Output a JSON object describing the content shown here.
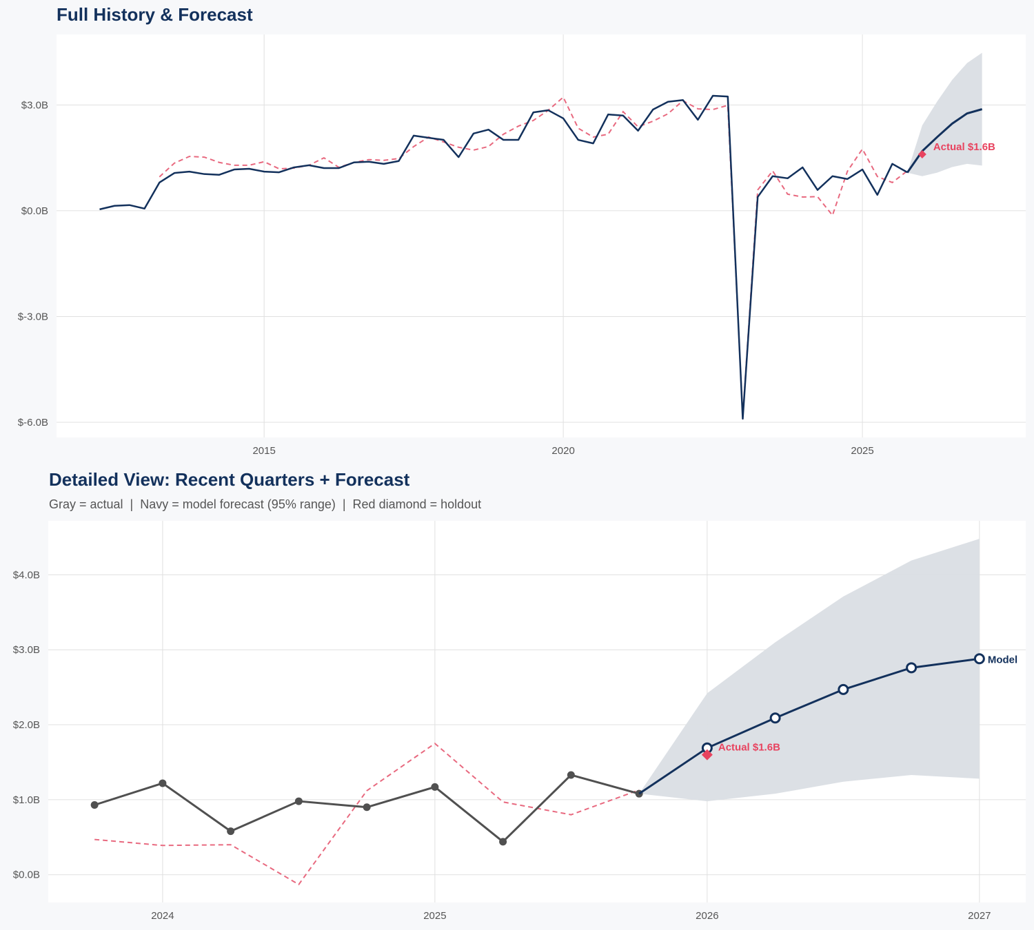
{
  "colors": {
    "navy": "#13315c",
    "gray": "#505050",
    "fitted": "#e8697f",
    "holdout": "#e8435f",
    "band": "#dadee4",
    "grid": "#e0e0e0"
  },
  "chart_data": [
    {
      "type": "line",
      "title": "Full History & Forecast",
      "xlim": [
        2011.53,
        2027.73
      ],
      "ylim": [
        -6.43,
        5.0
      ],
      "grid": true,
      "xticks": [
        2015,
        2020,
        2025
      ],
      "xtick_labels": [
        "2015",
        "2020",
        "2025"
      ],
      "yticks": [
        -6,
        -3,
        0,
        3
      ],
      "ytick_labels": [
        "$-6.0B",
        "$-3.0B",
        "$0.0B",
        "$3.0B"
      ],
      "actual": {
        "x_start": 2012.25,
        "x_step": 0.25,
        "values": [
          0.04,
          0.14,
          0.16,
          0.06,
          0.8,
          1.07,
          1.11,
          1.04,
          1.02,
          1.17,
          1.19,
          1.11,
          1.09,
          1.23,
          1.29,
          1.21,
          1.21,
          1.37,
          1.39,
          1.33,
          1.41,
          2.13,
          2.07,
          2.01,
          1.52,
          2.19,
          2.3,
          2.01,
          2.01,
          2.79,
          2.85,
          2.62,
          2.01,
          1.91,
          2.73,
          2.7,
          2.27,
          2.87,
          3.09,
          3.14,
          2.58,
          3.26,
          3.24,
          -5.9,
          0.39,
          0.98,
          0.92,
          1.23,
          0.59,
          0.98,
          0.9,
          1.17,
          0.45,
          1.33,
          1.09
        ]
      },
      "fitted": {
        "x_start": 2013.25,
        "x_step": 0.25,
        "values": [
          0.96,
          1.35,
          1.54,
          1.52,
          1.37,
          1.29,
          1.29,
          1.39,
          1.19,
          1.21,
          1.29,
          1.5,
          1.23,
          1.37,
          1.45,
          1.43,
          1.48,
          1.82,
          2.09,
          1.95,
          1.8,
          1.72,
          1.82,
          2.17,
          2.4,
          2.56,
          2.85,
          3.22,
          2.34,
          2.09,
          2.17,
          2.81,
          2.38,
          2.54,
          2.75,
          3.12,
          2.89,
          2.87,
          2.99,
          -5.84,
          0.59,
          1.13,
          0.47,
          0.39,
          0.4,
          -0.13,
          1.12,
          1.75,
          0.97,
          0.8,
          1.13
        ]
      },
      "forecast": {
        "x": [
          2025.75,
          2026.0,
          2026.25,
          2026.5,
          2026.75,
          2027.0
        ],
        "values": [
          1.08,
          1.69,
          2.09,
          2.47,
          2.76,
          2.88
        ],
        "lower": [
          1.08,
          0.98,
          1.08,
          1.24,
          1.33,
          1.28
        ],
        "upper": [
          1.08,
          2.42,
          3.1,
          3.71,
          4.19,
          4.48
        ]
      },
      "holdout": {
        "x": 2026.0,
        "value": 1.6,
        "label": "Actual $1.6B"
      }
    },
    {
      "type": "line",
      "title": "Detailed View: Recent Quarters + Forecast",
      "subtitle": "Gray = actual  |  Navy = model forecast (95% range)  |  Red diamond = holdout",
      "xlim": [
        2023.58,
        2027.17
      ],
      "ylim": [
        -0.37,
        4.72
      ],
      "grid": true,
      "xticks": [
        2024,
        2025,
        2026,
        2027
      ],
      "xtick_labels": [
        "2024",
        "2025",
        "2026",
        "2027"
      ],
      "yticks": [
        0,
        1,
        2,
        3,
        4
      ],
      "ytick_labels": [
        "$0.0B",
        "$1.0B",
        "$2.0B",
        "$3.0B",
        "$4.0B"
      ],
      "actual": {
        "x_start": 2023.75,
        "x_step": 0.25,
        "values": [
          0.93,
          1.22,
          0.58,
          0.98,
          0.9,
          1.17,
          0.44,
          1.33,
          1.08
        ]
      },
      "fitted": {
        "x_start": 2023.75,
        "x_step": 0.25,
        "values": [
          0.47,
          0.39,
          0.4,
          -0.13,
          1.12,
          1.75,
          0.97,
          0.8,
          1.13
        ]
      },
      "forecast": {
        "x": [
          2025.75,
          2026.0,
          2026.25,
          2026.5,
          2026.75,
          2027.0
        ],
        "values": [
          1.08,
          1.69,
          2.09,
          2.47,
          2.76,
          2.88
        ],
        "lower": [
          1.08,
          0.98,
          1.08,
          1.24,
          1.33,
          1.28
        ],
        "upper": [
          1.08,
          2.42,
          3.1,
          3.71,
          4.19,
          4.48
        ],
        "end_label": "Model"
      },
      "holdout": {
        "x": 2026.0,
        "value": 1.6,
        "label": "Actual $1.6B"
      }
    }
  ]
}
